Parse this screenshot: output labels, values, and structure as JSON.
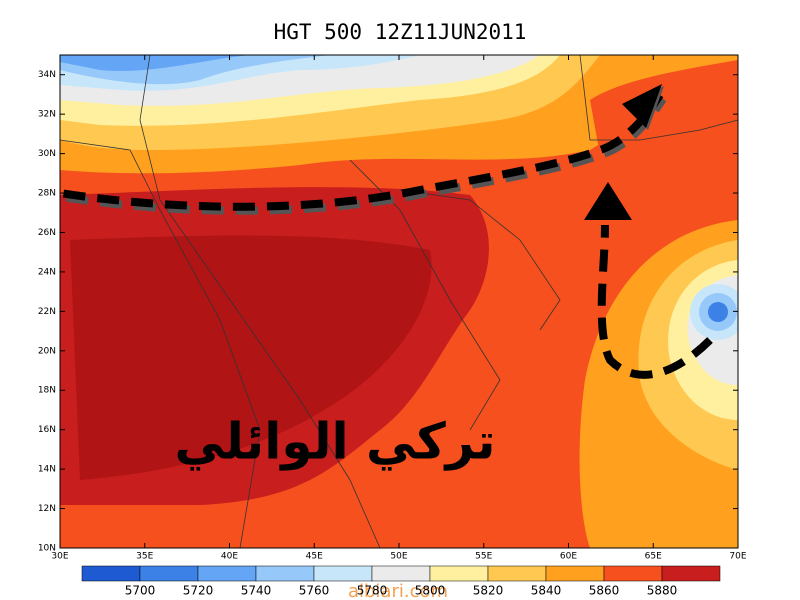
{
  "title": "HGT 500 12Z11JUN2011",
  "map": {
    "xlim": [
      30,
      70
    ],
    "ylim": [
      10,
      35
    ],
    "xticks": [
      {
        "value": 30,
        "label": "30E"
      },
      {
        "value": 35,
        "label": "35E"
      },
      {
        "value": 40,
        "label": "40E"
      },
      {
        "value": 45,
        "label": "45E"
      },
      {
        "value": 50,
        "label": "50E"
      },
      {
        "value": 55,
        "label": "55E"
      },
      {
        "value": 60,
        "label": "60E"
      },
      {
        "value": 65,
        "label": "65E"
      },
      {
        "value": 70,
        "label": "70E"
      }
    ],
    "yticks": [
      {
        "value": 10,
        "label": "10N"
      },
      {
        "value": 12,
        "label": "12N"
      },
      {
        "value": 14,
        "label": "14N"
      },
      {
        "value": 16,
        "label": "16N"
      },
      {
        "value": 18,
        "label": "18N"
      },
      {
        "value": 20,
        "label": "20N"
      },
      {
        "value": 22,
        "label": "22N"
      },
      {
        "value": 24,
        "label": "24N"
      },
      {
        "value": 26,
        "label": "26N"
      },
      {
        "value": 28,
        "label": "28N"
      },
      {
        "value": 30,
        "label": "30N"
      },
      {
        "value": 32,
        "label": "32N"
      },
      {
        "value": 34,
        "label": "34N"
      }
    ]
  },
  "colorbar": {
    "levels": [
      5700,
      5720,
      5740,
      5760,
      5780,
      5800,
      5820,
      5840,
      5860,
      5880
    ],
    "colors": [
      "#1e5ad2",
      "#3c82e6",
      "#64a5f5",
      "#96c8fa",
      "#c8e6fa",
      "#ebebeb",
      "#fff0a0",
      "#ffc850",
      "#ffa01e",
      "#f5501e",
      "#c81e1e"
    ]
  },
  "signature": "تركي الوائلي",
  "watermark": "albiari.com"
}
